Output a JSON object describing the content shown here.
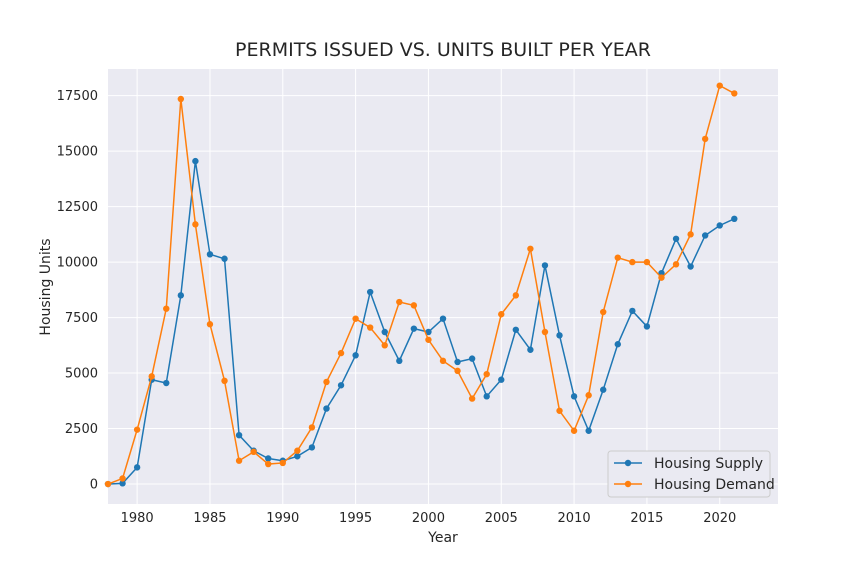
{
  "chart_data": {
    "type": "line",
    "title": "PERMITS ISSUED VS. UNITS BUILT PER YEAR",
    "xlabel": "Year",
    "ylabel": "Housing Units",
    "xlim": [
      1978,
      2024
    ],
    "ylim": [
      -900,
      18700
    ],
    "xticks": [
      1980,
      1985,
      1990,
      1995,
      2000,
      2005,
      2010,
      2015,
      2020
    ],
    "yticks": [
      0,
      2500,
      5000,
      7500,
      10000,
      12500,
      15000,
      17500
    ],
    "grid": true,
    "legend_position": "lower-right",
    "x": [
      1978,
      1979,
      1980,
      1981,
      1982,
      1983,
      1984,
      1985,
      1986,
      1987,
      1988,
      1989,
      1990,
      1991,
      1992,
      1993,
      1994,
      1995,
      1996,
      1997,
      1998,
      1999,
      2000,
      2001,
      2002,
      2003,
      2004,
      2005,
      2006,
      2007,
      2008,
      2009,
      2010,
      2011,
      2012,
      2013,
      2014,
      2015,
      2016,
      2017,
      2018,
      2019,
      2020,
      2021
    ],
    "series": [
      {
        "name": "Housing Supply",
        "color": "#1f77b4",
        "values": [
          0,
          30,
          750,
          4700,
          4550,
          8500,
          14550,
          10350,
          10150,
          2200,
          1500,
          1150,
          1050,
          1250,
          1650,
          3400,
          4450,
          5800,
          8650,
          6850,
          5550,
          7000,
          6850,
          7450,
          5500,
          5650,
          3950,
          4700,
          6950,
          6050,
          9850,
          6700,
          3950,
          2400,
          4250,
          6300,
          7800,
          7100,
          9500,
          11050,
          9800,
          11200,
          11650,
          11950
        ]
      },
      {
        "name": "Housing Demand",
        "color": "#ff7f0e",
        "values": [
          0,
          250,
          2450,
          4850,
          7900,
          17350,
          11700,
          7200,
          4650,
          1050,
          1450,
          900,
          950,
          1500,
          2550,
          4600,
          5900,
          7450,
          7050,
          6250,
          8200,
          8050,
          6500,
          5550,
          5100,
          3850,
          4950,
          7650,
          8500,
          10600,
          6850,
          3300,
          2400,
          4000,
          7750,
          10200,
          10000,
          10000,
          9300,
          9900,
          11250,
          15550,
          17950,
          17600
        ]
      }
    ]
  }
}
